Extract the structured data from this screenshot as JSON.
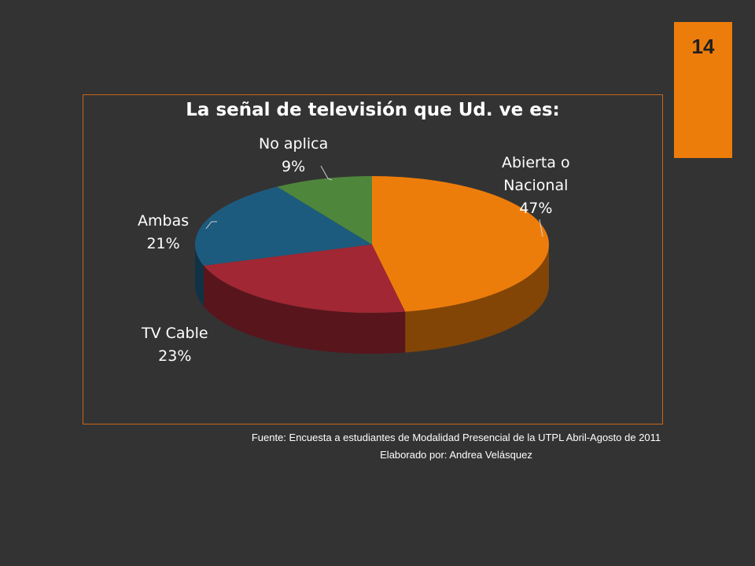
{
  "page": {
    "number": "14"
  },
  "chart_data": {
    "type": "pie",
    "title": "La señal de televisión que Ud. ve es:",
    "slices": [
      {
        "name": "Abierta o Nacional",
        "label_lines": [
          "Abierta o",
          "Nacional"
        ],
        "value": 47,
        "value_label": "47%",
        "color": "#ED7D0A"
      },
      {
        "name": "TV Cable",
        "label_lines": [
          "TV Cable"
        ],
        "value": 23,
        "value_label": "23%",
        "color": "#A02733"
      },
      {
        "name": "Ambas",
        "label_lines": [
          "Ambas"
        ],
        "value": 21,
        "value_label": "21%",
        "color": "#1D5B7E"
      },
      {
        "name": "No aplica",
        "label_lines": [
          "No aplica"
        ],
        "value": 9,
        "value_label": "9%",
        "color": "#4E863C"
      }
    ]
  },
  "footer": {
    "source": "Fuente: Encuesta a estudiantes de Modalidad Presencial de la UTPL Abril-Agosto de 2011",
    "author": "Elaborado por: Andrea  Velásquez"
  }
}
